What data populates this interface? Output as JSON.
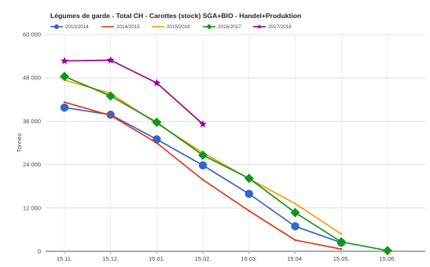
{
  "chart_data": {
    "type": "line",
    "title": "Légumes de garde - Total CH - Carottes (stock) SGA+BIO - Handel+Produktion",
    "ylabel": "Tonnes",
    "xlabel": "",
    "categories": [
      "15.11.",
      "15.12.",
      "15.01.",
      "15.02.",
      "15.03.",
      "15.04.",
      "15.05.",
      "15.06."
    ],
    "ylim": [
      0,
      60000
    ],
    "yticks": [
      0,
      12000,
      24000,
      36000,
      48000,
      60000
    ],
    "ytick_labels": [
      "0",
      "12 000",
      "24 000",
      "36 000",
      "48 000",
      "60 000"
    ],
    "grid": true,
    "legend_position": "top-left",
    "series": [
      {
        "name": "2013/2014",
        "color": "#3366cc",
        "marker": "circle",
        "values": [
          39800,
          37800,
          31000,
          23800,
          15900,
          6900,
          2400,
          null
        ]
      },
      {
        "name": "2014/2015",
        "color": "#dc3912",
        "marker": "none",
        "values": [
          41300,
          37600,
          30000,
          19800,
          11200,
          3100,
          600,
          null
        ]
      },
      {
        "name": "2015/2016",
        "color": "#ff9900",
        "marker": "none",
        "values": [
          47400,
          43700,
          35400,
          27300,
          20100,
          13200,
          4800,
          null
        ]
      },
      {
        "name": "2016/2017",
        "color": "#109618",
        "marker": "diamond",
        "values": [
          48400,
          43000,
          35700,
          26600,
          20200,
          10700,
          2600,
          200
        ]
      },
      {
        "name": "2017/2018",
        "color": "#990099",
        "marker": "star",
        "values": [
          52700,
          52900,
          46600,
          35200,
          null,
          null,
          null,
          null
        ]
      }
    ]
  }
}
